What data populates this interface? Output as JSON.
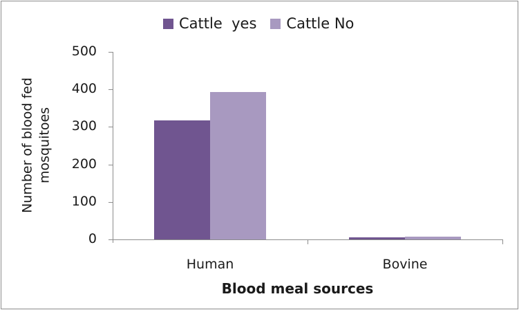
{
  "chart_data": {
    "type": "bar",
    "title": "",
    "categories": [
      "Human",
      "Bovine"
    ],
    "series": [
      {
        "name": "Cattle  yes",
        "color": "#705590",
        "values": [
          318,
          6
        ]
      },
      {
        "name": "Cattle No",
        "color": "#a899c0",
        "values": [
          393,
          8
        ]
      }
    ],
    "xlabel": "Blood meal sources",
    "ylabel_line1": "Number of blood fed",
    "ylabel_line2": "mosquitoes",
    "ylim": [
      0,
      500
    ],
    "yticks": [
      "500",
      "400",
      "300",
      "200",
      "100",
      "0"
    ],
    "grid": false,
    "legend_position": "top"
  }
}
